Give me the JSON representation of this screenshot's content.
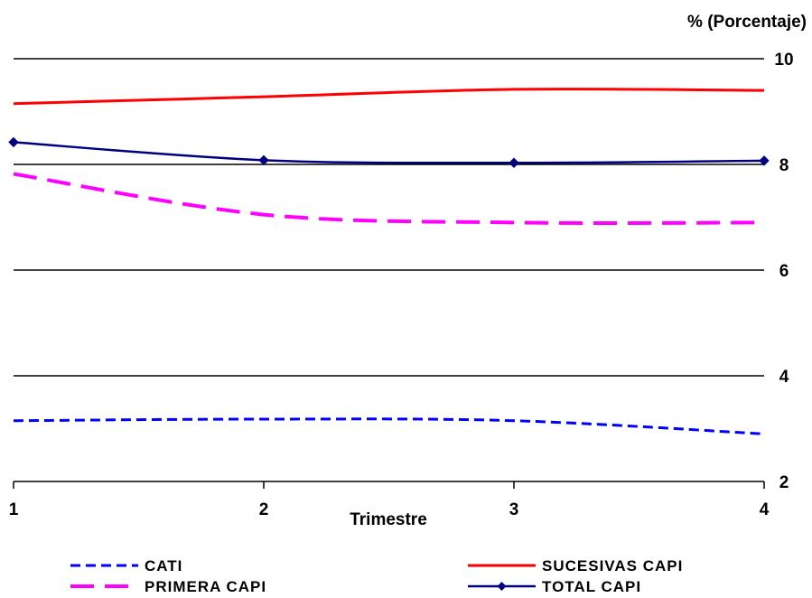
{
  "chart_data": {
    "type": "line",
    "title": "",
    "xlabel": "Trimestre",
    "ylabel": "% (Porcentaje)",
    "x": [
      1,
      2,
      3,
      4
    ],
    "x_tick_labels": [
      "1",
      "2",
      "3",
      "4"
    ],
    "ylim": [
      2,
      10
    ],
    "y_ticks": [
      2,
      4,
      6,
      8,
      10
    ],
    "y_tick_labels": [
      "2",
      "4",
      "6",
      "8",
      "10"
    ],
    "y_axis_side": "right",
    "grid": "horizontal",
    "legend_position": "bottom",
    "series": [
      {
        "name": "CATI",
        "values": [
          3.15,
          3.18,
          3.15,
          2.9
        ],
        "color": "#0000ff",
        "style": "dashed"
      },
      {
        "name": "SUCESIVAS CAPI",
        "values": [
          9.15,
          9.28,
          9.42,
          9.4
        ],
        "color": "#ff0000",
        "style": "solid"
      },
      {
        "name": "PRIMERA CAPI",
        "values": [
          7.82,
          7.05,
          6.9,
          6.9
        ],
        "color": "#ff00ff",
        "style": "long-dashed"
      },
      {
        "name": "TOTAL CAPI",
        "values": [
          8.42,
          8.08,
          8.03,
          8.07
        ],
        "color": "#000080",
        "style": "solid-markers"
      }
    ]
  }
}
